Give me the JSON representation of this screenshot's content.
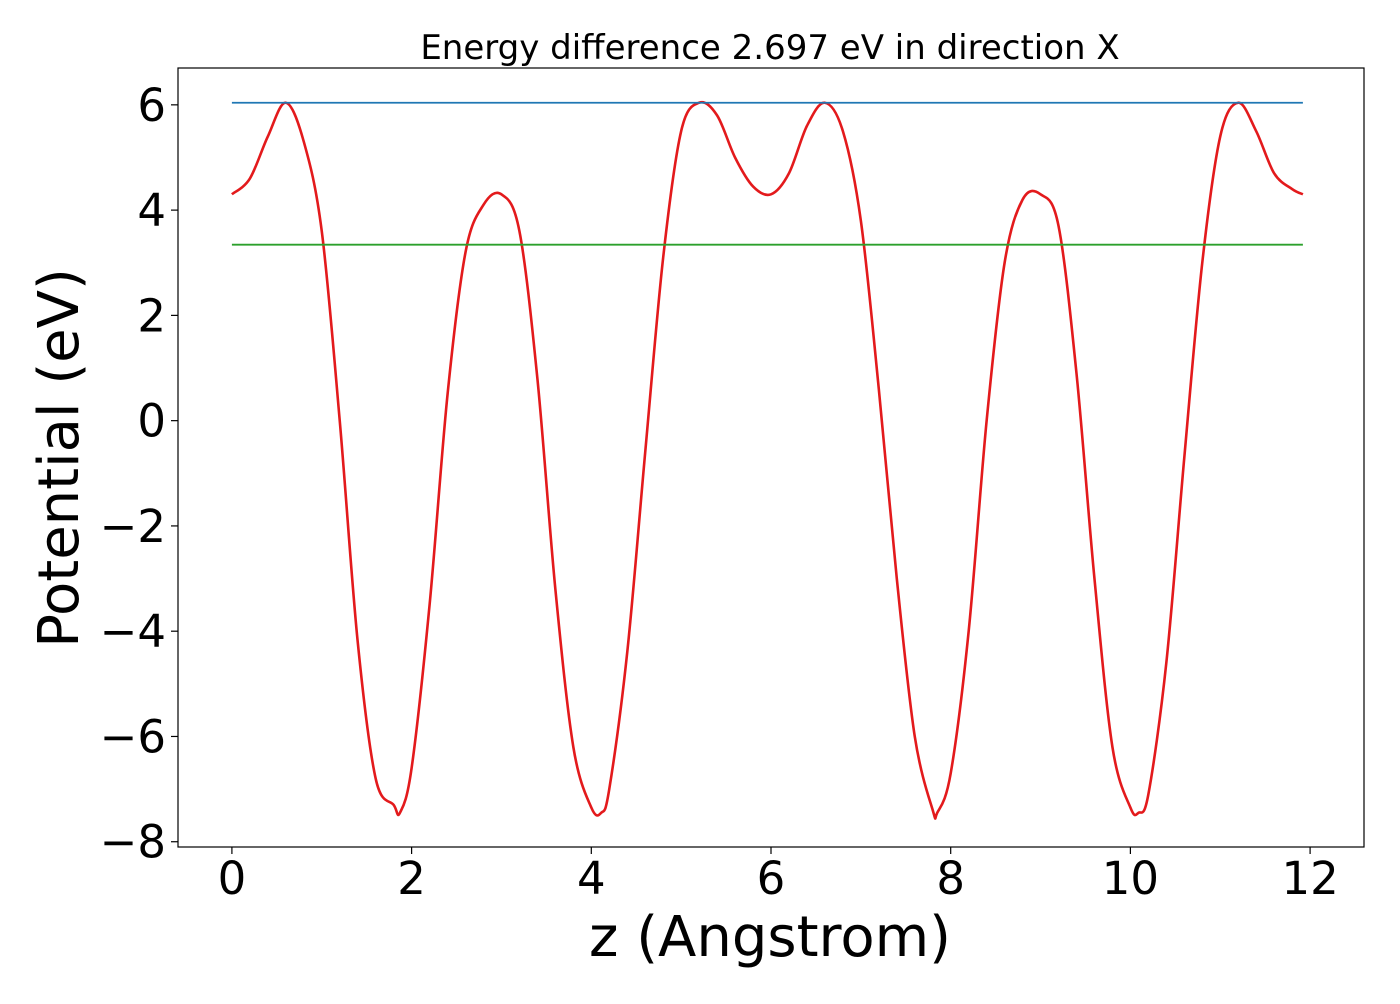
{
  "chart_data": {
    "type": "line",
    "title": "Energy difference 2.697 eV in direction X",
    "xlabel": "z (Angstrom)",
    "ylabel": "Potential (eV)",
    "xlim": [
      -0.6,
      12.6
    ],
    "ylim": [
      -8.1,
      6.7
    ],
    "grid": false,
    "x_ticks": [
      0,
      2,
      4,
      6,
      8,
      10,
      12
    ],
    "x_tick_labels": [
      "0",
      "2",
      "4",
      "6",
      "8",
      "10",
      "12"
    ],
    "y_ticks": [
      6,
      4,
      2,
      0,
      -2,
      -4,
      -6,
      -8
    ],
    "y_tick_labels": [
      "6",
      "4",
      "2",
      "0",
      "−2",
      "−4",
      "−6",
      "−8"
    ],
    "series": [
      {
        "color": "#e31a1c",
        "x": [
          0,
          0.2,
          0.4,
          0.6,
          0.8,
          1.0,
          1.2,
          1.4,
          1.6,
          1.8,
          1.87,
          2.0,
          2.2,
          2.4,
          2.6,
          2.8,
          3.0,
          3.2,
          3.4,
          3.6,
          3.8,
          4.0,
          4.11,
          4.2,
          4.4,
          4.6,
          4.8,
          5.0,
          5.2,
          5.4,
          5.6,
          5.8,
          6.0,
          6.2,
          6.4,
          6.6,
          6.8,
          7.0,
          7.2,
          7.4,
          7.6,
          7.8,
          7.85,
          8.0,
          8.2,
          8.4,
          8.6,
          8.8,
          9.0,
          9.2,
          9.4,
          9.6,
          9.8,
          10.0,
          10.09,
          10.2,
          10.4,
          10.6,
          10.8,
          11.0,
          11.2,
          11.4,
          11.6,
          11.8,
          11.92
        ],
        "y": [
          4.3,
          4.6,
          5.4,
          6.04,
          5.3,
          3.6,
          0.0,
          -4.2,
          -6.8,
          -7.3,
          -7.45,
          -6.6,
          -3.5,
          0.5,
          3.2,
          4.1,
          4.3,
          3.6,
          0.8,
          -3.2,
          -6.2,
          -7.35,
          -7.45,
          -7.0,
          -4.4,
          -0.6,
          3.1,
          5.5,
          6.04,
          5.8,
          5.0,
          4.45,
          4.3,
          4.7,
          5.6,
          6.04,
          5.5,
          3.8,
          0.6,
          -3.0,
          -6.0,
          -7.4,
          -7.45,
          -6.7,
          -4.0,
          0.0,
          3.0,
          4.2,
          4.3,
          3.7,
          0.9,
          -3.0,
          -6.2,
          -7.35,
          -7.45,
          -7.1,
          -4.6,
          -0.7,
          3.0,
          5.4,
          6.04,
          5.5,
          4.7,
          4.4,
          4.3
        ]
      },
      {
        "color": "#1f77b4",
        "x": [
          0,
          11.92
        ],
        "y": [
          6.04,
          6.04
        ]
      },
      {
        "color": "#2ca02c",
        "x": [
          0,
          11.92
        ],
        "y": [
          3.343,
          3.343
        ]
      }
    ]
  }
}
